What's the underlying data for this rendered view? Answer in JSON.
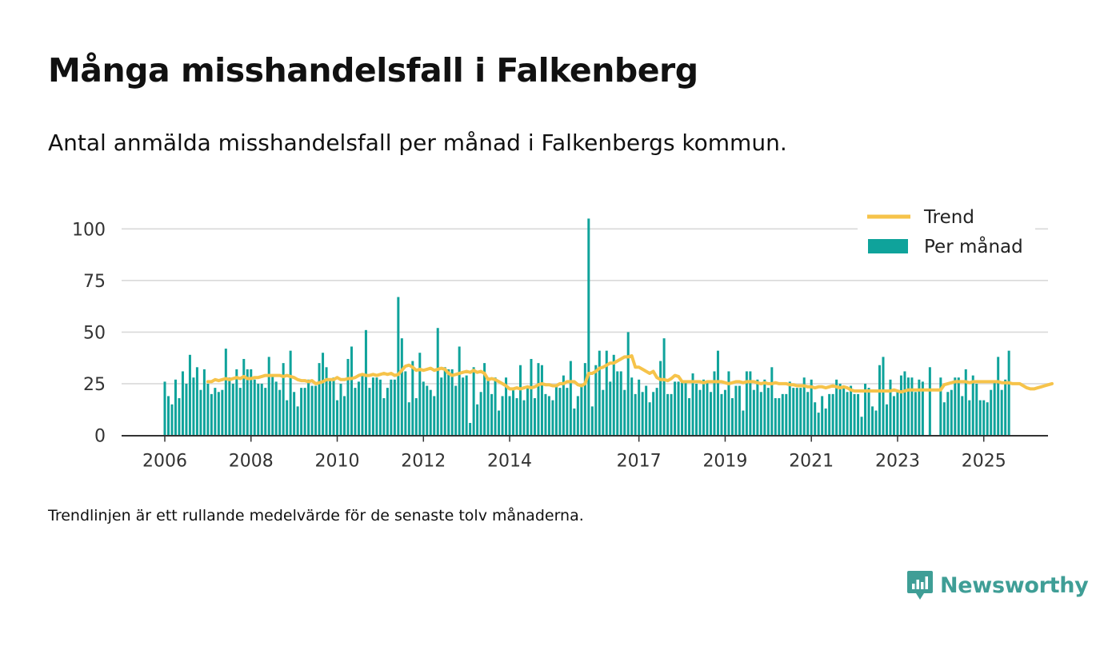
{
  "header": {
    "title": "Många misshandelsfall i Falkenberg",
    "subtitle": "Antal anmälda misshandelsfall per månad i Falkenbergs kommun."
  },
  "footer": {
    "note": "Trendlinjen är ett rullande medelvärde för de senaste tolv månaderna."
  },
  "brand": {
    "name": "Newsworthy",
    "icon": "newsworthy-logo-icon",
    "color": "#3f9e96"
  },
  "colors": {
    "bars": "#0fa39b",
    "trend": "#f6c34a",
    "grid": "#d9d9d9",
    "axis": "#333333"
  },
  "chart_data": {
    "type": "bar",
    "title": "",
    "xlabel": "",
    "ylabel": "",
    "ylim": [
      0,
      110
    ],
    "yticks": [
      0,
      25,
      50,
      75,
      100
    ],
    "xticks": [
      "2006",
      "2008",
      "2010",
      "2012",
      "2014",
      "2017",
      "2019",
      "2021",
      "2023",
      "2025"
    ],
    "grid": true,
    "legend_position": "top-right",
    "x_start": "2006-01",
    "x_frequency": "monthly",
    "series": [
      {
        "name": "Per månad",
        "type": "bar",
        "values": [
          26,
          19,
          15,
          27,
          18,
          31,
          25,
          39,
          28,
          33,
          22,
          32,
          25,
          20,
          23,
          21,
          22,
          42,
          28,
          25,
          32,
          23,
          37,
          32,
          32,
          27,
          25,
          25,
          23,
          38,
          29,
          26,
          22,
          35,
          17,
          41,
          21,
          14,
          23,
          23,
          27,
          24,
          24,
          35,
          40,
          33,
          27,
          28,
          17,
          25,
          19,
          37,
          43,
          23,
          26,
          29,
          51,
          23,
          28,
          28,
          27,
          18,
          23,
          27,
          27,
          67,
          47,
          31,
          16,
          36,
          18,
          40,
          26,
          24,
          22,
          19,
          52,
          28,
          33,
          32,
          32,
          24,
          43,
          28,
          29,
          6,
          33,
          15,
          21,
          35,
          28,
          20,
          28,
          12,
          19,
          28,
          19,
          23,
          18,
          34,
          17,
          23,
          37,
          18,
          35,
          34,
          20,
          19,
          17,
          24,
          23,
          29,
          23,
          36,
          13,
          19,
          25,
          35,
          105,
          14,
          34,
          41,
          22,
          41,
          26,
          39,
          31,
          31,
          22,
          50,
          28,
          20,
          27,
          21,
          24,
          16,
          21,
          23,
          36,
          47,
          20,
          20,
          26,
          26,
          26,
          26,
          18,
          30,
          25,
          22,
          27,
          26,
          21,
          31,
          41,
          20,
          22,
          31,
          18,
          24,
          24,
          12,
          31,
          31,
          22,
          27,
          21,
          27,
          23,
          33,
          18,
          18,
          20,
          20,
          26,
          23,
          23,
          23,
          28,
          21,
          27,
          16,
          11,
          19,
          13,
          20,
          20,
          27,
          25,
          23,
          21,
          24,
          20,
          20,
          9,
          25,
          23,
          14,
          12,
          34,
          38,
          15,
          27,
          19,
          21,
          29,
          31,
          28,
          28,
          21,
          27,
          26,
          0,
          33,
          0,
          0,
          28,
          16,
          21,
          22,
          28,
          28,
          19,
          32,
          17,
          29,
          25,
          17,
          17,
          16,
          22,
          26,
          38,
          22,
          27,
          41
        ]
      },
      {
        "name": "Trend",
        "type": "line",
        "start_index": 12,
        "values": [
          26,
          26,
          27,
          26.5,
          27,
          27.5,
          27,
          27.5,
          28,
          27.5,
          28.5,
          27.5,
          27.5,
          28,
          28,
          28.5,
          29,
          29,
          29,
          29,
          29,
          28.5,
          29,
          28.5,
          28,
          27,
          26.5,
          26.5,
          26,
          26.5,
          25,
          25.5,
          26,
          27,
          27,
          27,
          28,
          27,
          27,
          27.5,
          27.5,
          28,
          29,
          29.5,
          29,
          29,
          29.5,
          29,
          29.5,
          30,
          29.5,
          30,
          29,
          29.5,
          31.5,
          33.5,
          34,
          33,
          31.5,
          32,
          31.5,
          32,
          32.5,
          31.5,
          32,
          32.5,
          32,
          30,
          29,
          29.5,
          30,
          30.5,
          31,
          30.5,
          31.5,
          30.5,
          31,
          30,
          27,
          27.5,
          27,
          26,
          25,
          24,
          22.5,
          22.5,
          23,
          22.5,
          23,
          23.5,
          23,
          23.5,
          24.5,
          25,
          24.5,
          24.5,
          24,
          24,
          25,
          25,
          26,
          26,
          26,
          24.5,
          24,
          25,
          30,
          30,
          31,
          32.5,
          33,
          34,
          35,
          35,
          36,
          37,
          38,
          38,
          38.5,
          33,
          33,
          32,
          31,
          30,
          31,
          28,
          27,
          27,
          26.5,
          27.5,
          29,
          28.5,
          26,
          26,
          26,
          26,
          26,
          26,
          25.5,
          26,
          26,
          26,
          26,
          26,
          25.5,
          25,
          25.5,
          26,
          26,
          25.5,
          26,
          26,
          26,
          25.5,
          25,
          25.5,
          25,
          25,
          25.5,
          25,
          25,
          25,
          24.5,
          24.5,
          24,
          24,
          24,
          23.5,
          23.5,
          23,
          23.5,
          23.5,
          23,
          23.5,
          24,
          23.5,
          23,
          23.5,
          23,
          22,
          21.5,
          21.5,
          21.5,
          21.5,
          21.5,
          21.5,
          21.5,
          21.5,
          21.5,
          21.5,
          21.5,
          22,
          21.5,
          21,
          21.5,
          22,
          22,
          22,
          22,
          22,
          22,
          22,
          22,
          22,
          22,
          24.5,
          25,
          25.5,
          26,
          26,
          26,
          26,
          25.5,
          26,
          26,
          26,
          26,
          26,
          26,
          26,
          26,
          25.5,
          25.5,
          25.5,
          25,
          25,
          25,
          24,
          23,
          22.5,
          22.5,
          23,
          23.5,
          24,
          24.5,
          25
        ]
      }
    ]
  }
}
